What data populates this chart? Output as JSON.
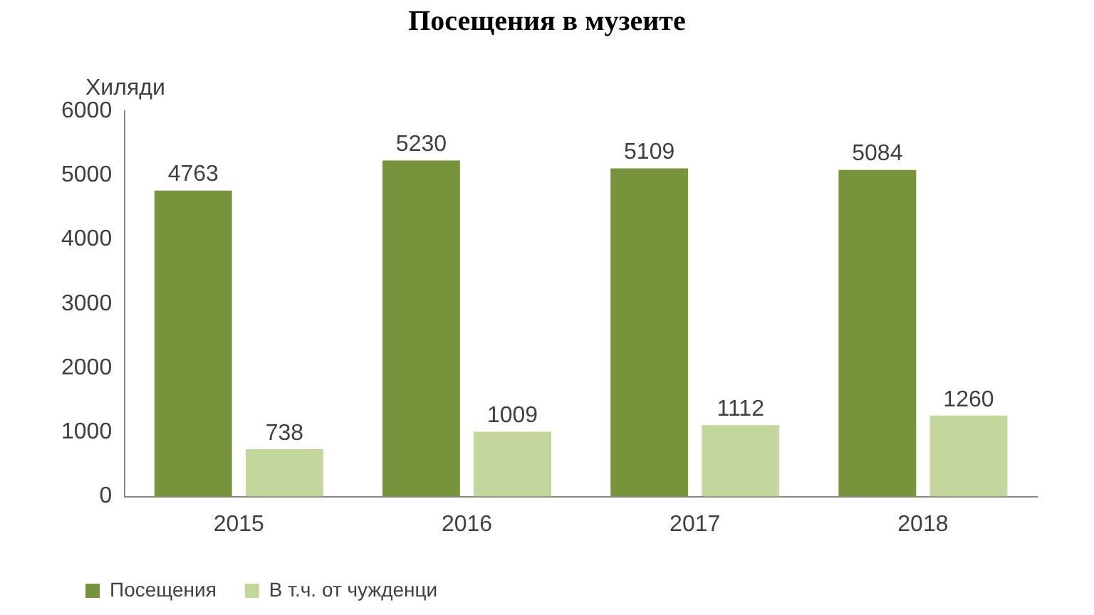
{
  "chart_data": {
    "type": "bar",
    "title": "Посещения в музеите",
    "ylabel": "Хиляди",
    "categories": [
      "2015",
      "2016",
      "2017",
      "2018"
    ],
    "series": [
      {
        "name": "Посещения",
        "color": "#77933c",
        "values": [
          4763,
          5230,
          5109,
          5084
        ]
      },
      {
        "name": "В т.ч. от чужденци",
        "color": "#c3d69b",
        "values": [
          738,
          1009,
          1112,
          1260
        ]
      }
    ],
    "ylim": [
      0,
      6000
    ],
    "yticks": [
      0,
      1000,
      2000,
      3000,
      4000,
      5000,
      6000
    ],
    "grid": false,
    "legend": "bottom left",
    "data_labels": true
  }
}
